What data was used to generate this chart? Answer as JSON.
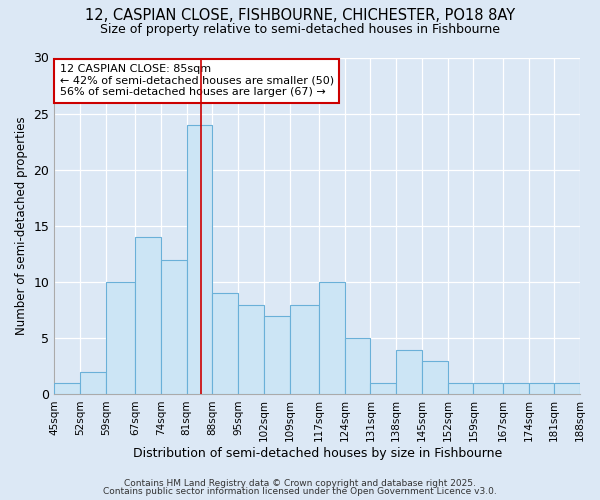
{
  "title_line1": "12, CASPIAN CLOSE, FISHBOURNE, CHICHESTER, PO18 8AY",
  "title_line2": "Size of property relative to semi-detached houses in Fishbourne",
  "xlabel": "Distribution of semi-detached houses by size in Fishbourne",
  "ylabel": "Number of semi-detached properties",
  "bin_labels": [
    "45sqm",
    "52sqm",
    "59sqm",
    "67sqm",
    "74sqm",
    "81sqm",
    "88sqm",
    "95sqm",
    "102sqm",
    "109sqm",
    "117sqm",
    "124sqm",
    "131sqm",
    "138sqm",
    "145sqm",
    "152sqm",
    "159sqm",
    "167sqm",
    "174sqm",
    "181sqm",
    "188sqm"
  ],
  "bin_edges": [
    45,
    52,
    59,
    67,
    74,
    81,
    88,
    95,
    102,
    109,
    117,
    124,
    131,
    138,
    145,
    152,
    159,
    167,
    174,
    181,
    188
  ],
  "counts": [
    1,
    2,
    10,
    14,
    12,
    24,
    9,
    8,
    7,
    8,
    10,
    5,
    1,
    4,
    3,
    1,
    1,
    1,
    1,
    1
  ],
  "property_value": 85,
  "bar_color": "#cce5f5",
  "bar_edge_color": "#6ab0d8",
  "vline_color": "#cc0000",
  "annotation_text": "12 CASPIAN CLOSE: 85sqm\n← 42% of semi-detached houses are smaller (50)\n56% of semi-detached houses are larger (67) →",
  "annotation_box_color": "#ffffff",
  "annotation_box_edge": "#cc0000",
  "ylim": [
    0,
    30
  ],
  "yticks": [
    0,
    5,
    10,
    15,
    20,
    25,
    30
  ],
  "background_color": "#dce8f5",
  "footer_line1": "Contains HM Land Registry data © Crown copyright and database right 2025.",
  "footer_line2": "Contains public sector information licensed under the Open Government Licence v3.0."
}
